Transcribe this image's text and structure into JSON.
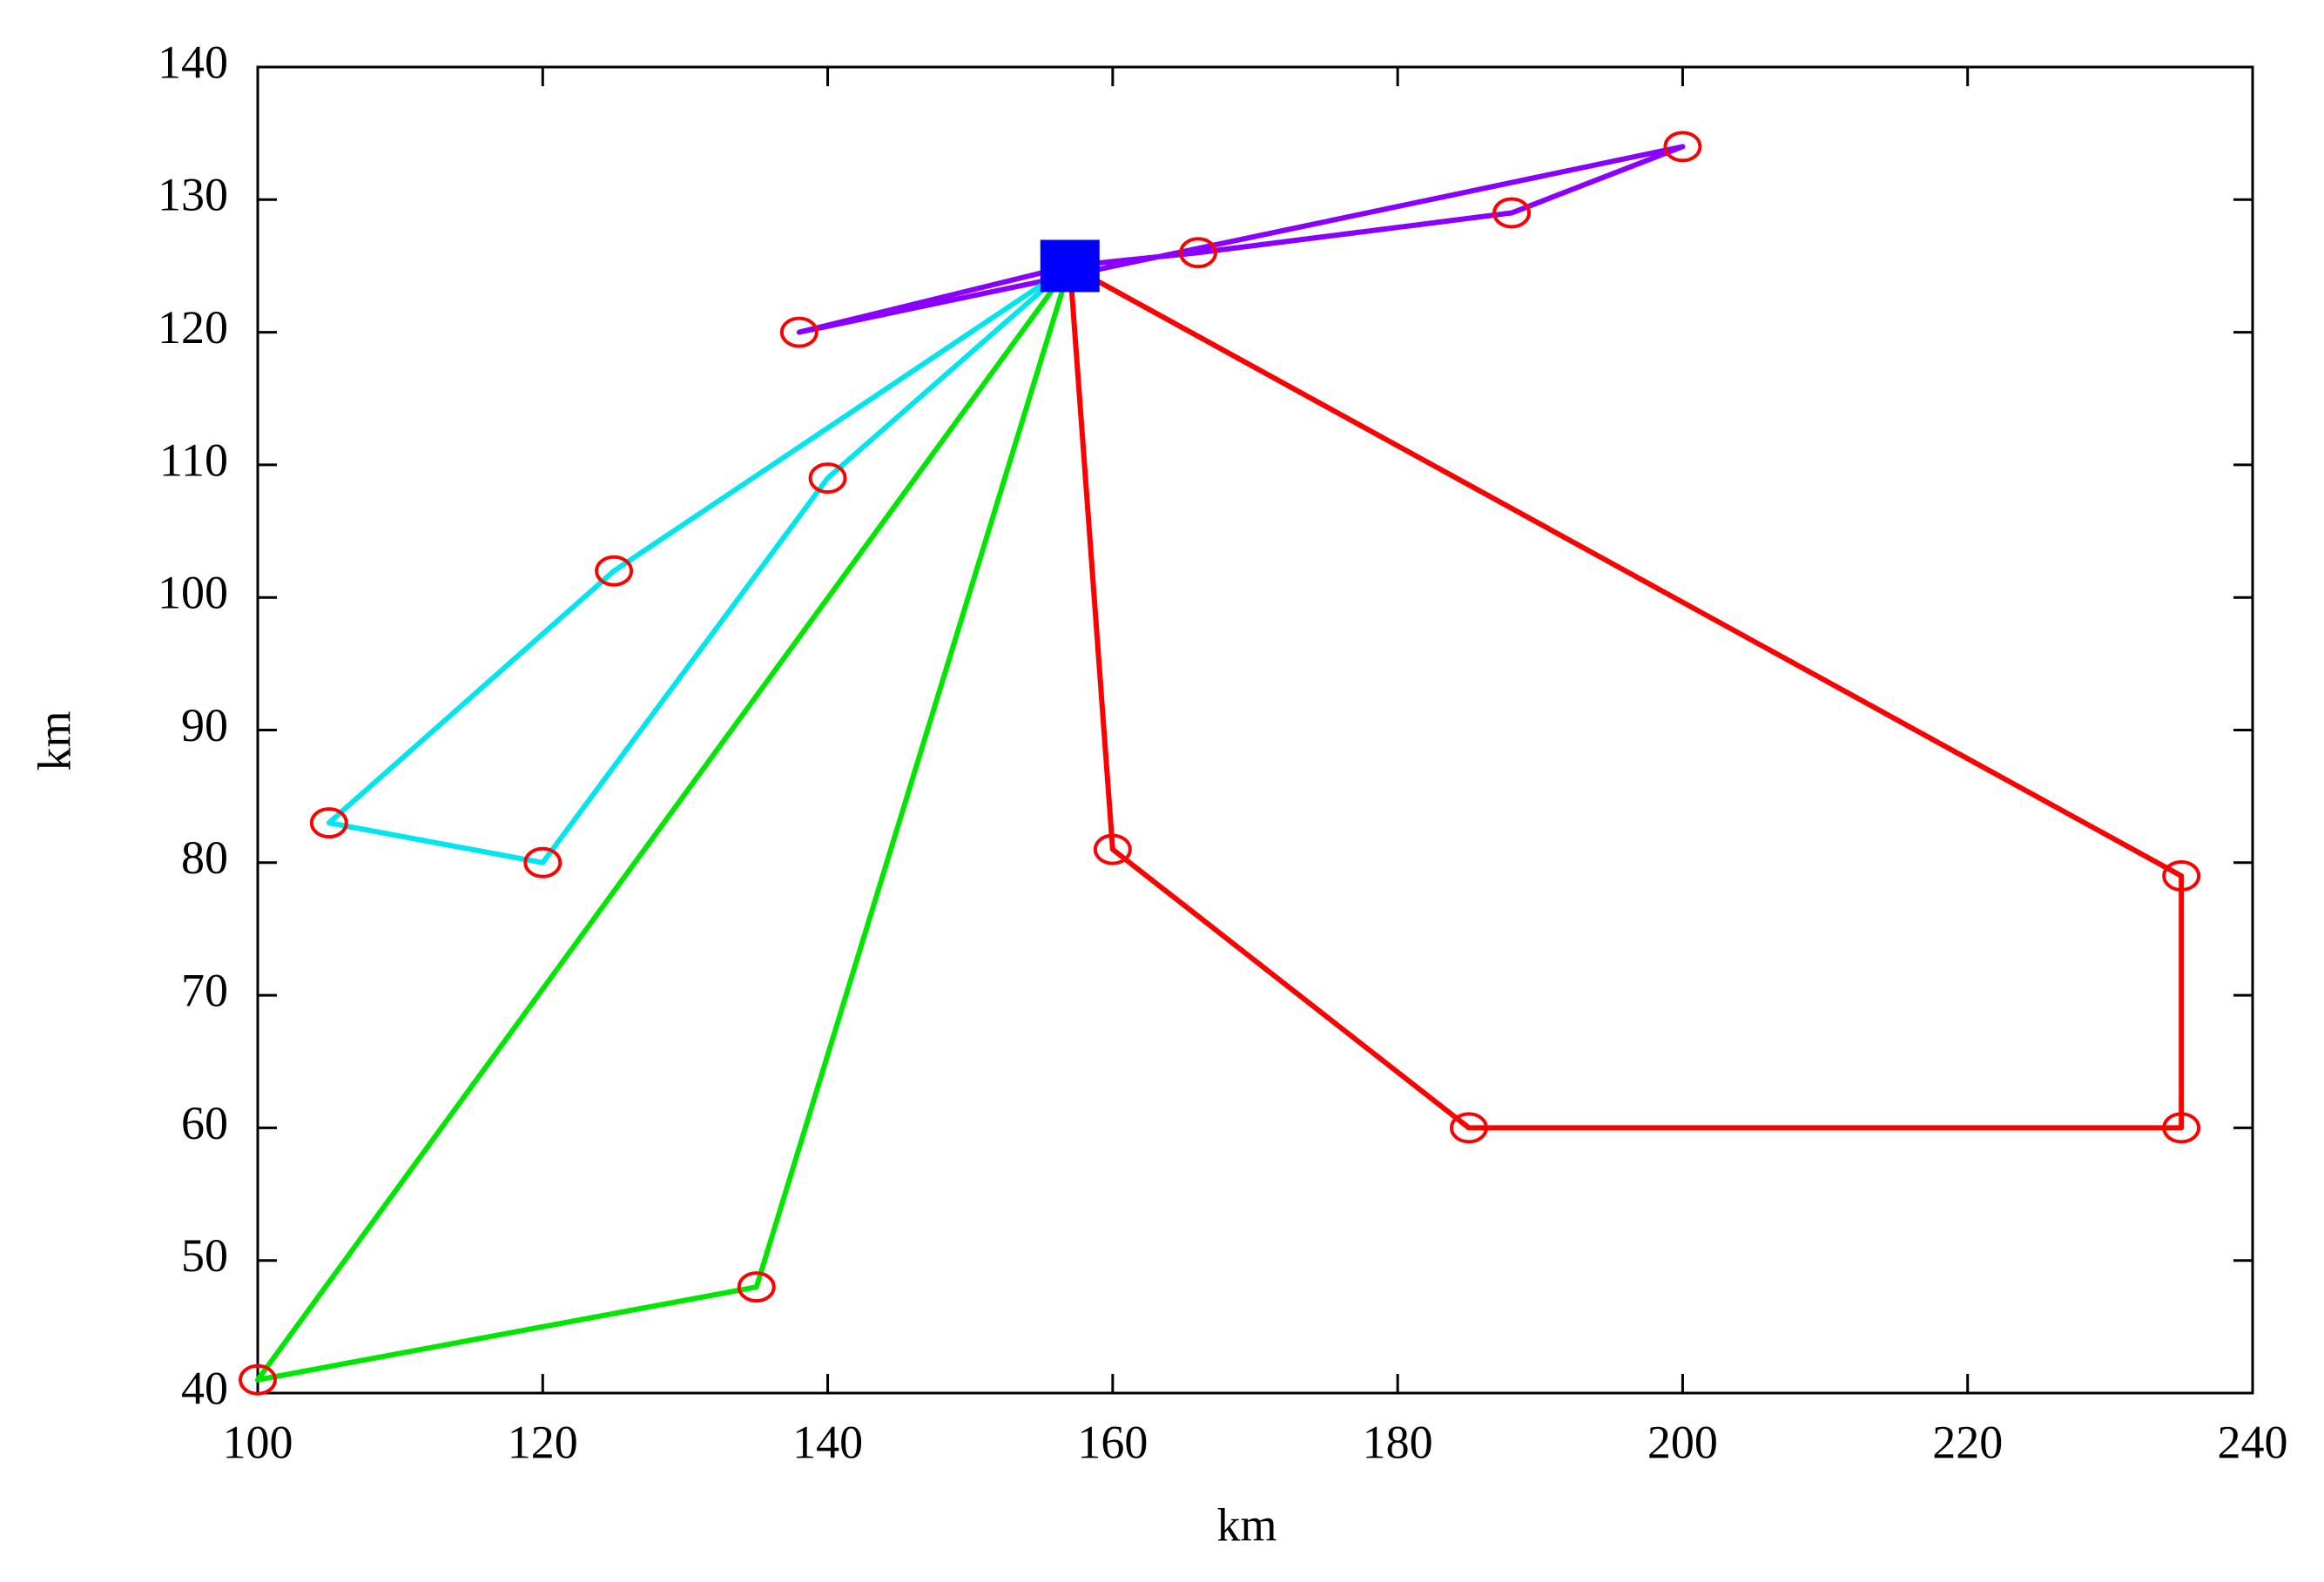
{
  "chart_data": {
    "type": "line",
    "xlabel": "km",
    "ylabel": "km",
    "xlim": [
      100,
      240
    ],
    "xticks": [
      100,
      120,
      140,
      160,
      180,
      200,
      220,
      240
    ],
    "ylim": [
      40,
      140
    ],
    "yticks": [
      40,
      50,
      60,
      70,
      80,
      90,
      100,
      110,
      120,
      130,
      140
    ],
    "marker_color": "#ff0000",
    "depot": {
      "x": 157,
      "y": 125,
      "color": "#0000ff"
    },
    "series": [
      {
        "color": "#8a00ff",
        "x": [
          157,
          166,
          188,
          200,
          138,
          157
        ],
        "values": [
          125,
          126,
          129,
          134,
          120,
          125
        ]
      },
      {
        "color": "#00e5ee",
        "x": [
          157,
          140,
          120,
          105,
          125,
          157
        ],
        "values": [
          125,
          109,
          80,
          83,
          102,
          125
        ]
      },
      {
        "color": "#00e600",
        "x": [
          157,
          135,
          100,
          157
        ],
        "values": [
          125,
          48,
          41,
          125
        ]
      },
      {
        "color": "#ff0000",
        "x": [
          157,
          160,
          185,
          235,
          235,
          157
        ],
        "values": [
          125,
          81,
          60,
          60,
          79,
          125
        ]
      }
    ]
  }
}
